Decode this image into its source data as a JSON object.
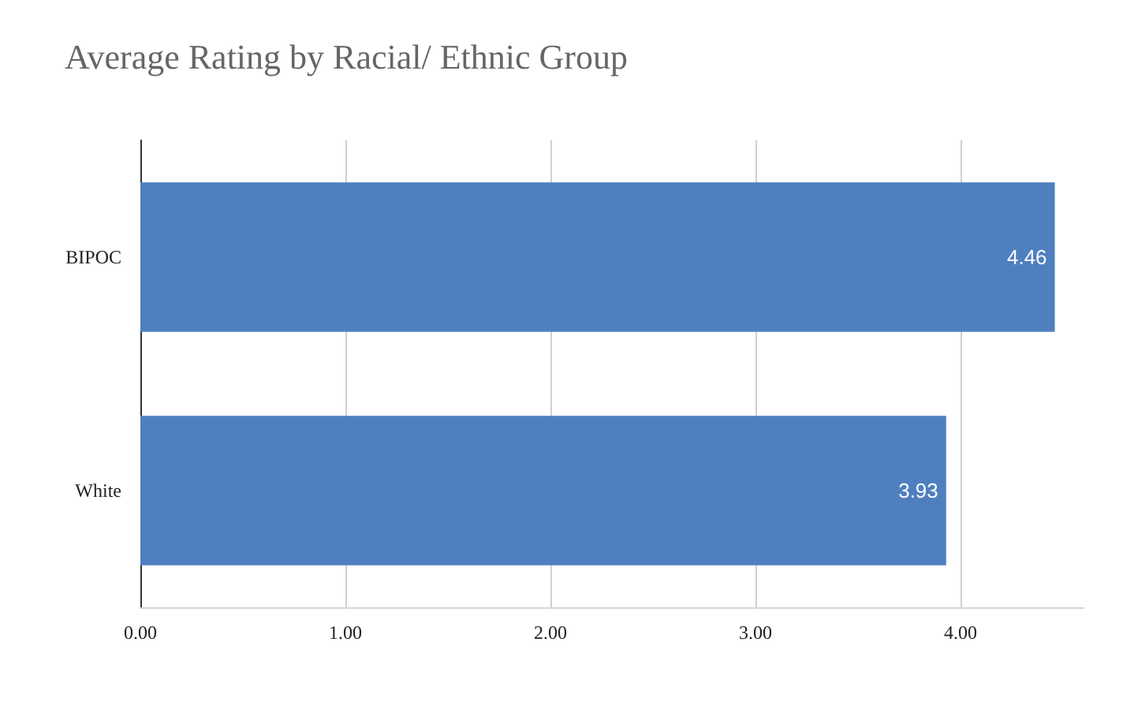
{
  "chart_data": {
    "type": "bar",
    "orientation": "horizontal",
    "title": "Average Rating by Racial/ Ethnic Group",
    "categories": [
      "BIPOC",
      "White"
    ],
    "values": [
      4.46,
      3.93
    ],
    "color": "#4f7fbf",
    "xlim": [
      0,
      4.6
    ],
    "xticks": [
      {
        "value": 0,
        "label": "0.00"
      },
      {
        "value": 1,
        "label": "1.00"
      },
      {
        "value": 2,
        "label": "2.00"
      },
      {
        "value": 3,
        "label": "3.00"
      },
      {
        "value": 4,
        "label": "4.00"
      }
    ],
    "grid": "x",
    "data_labels": true
  }
}
